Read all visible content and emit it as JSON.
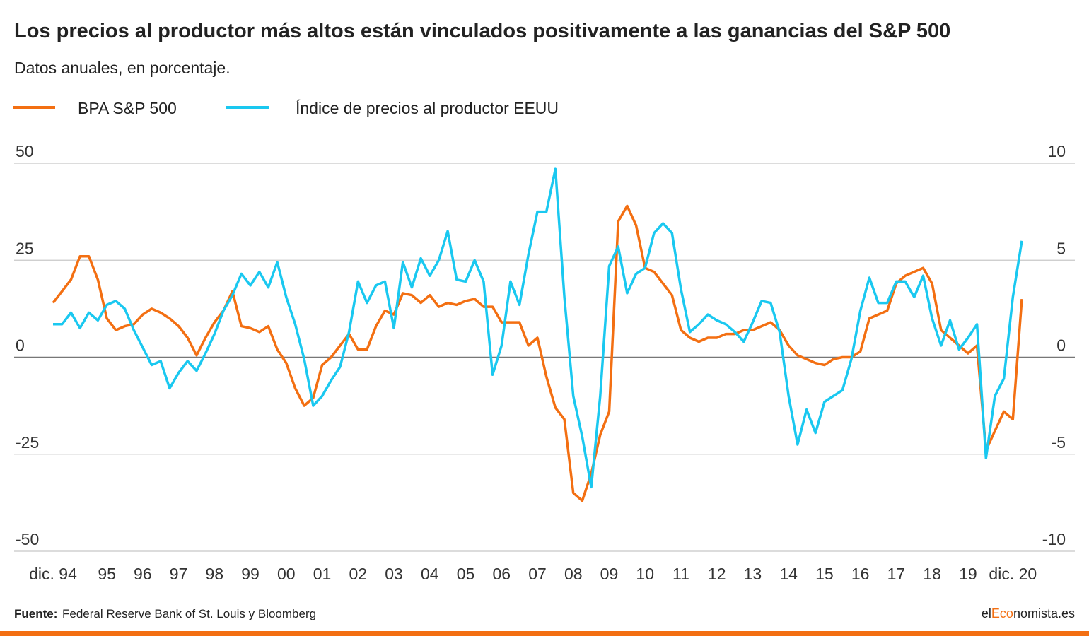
{
  "chart_data": {
    "type": "line",
    "title": "Los precios al productor más altos están vinculados positivamente a las ganancias del S&P 500",
    "subtitle": "Datos anuales, en porcentaje.",
    "source_label": "Fuente:",
    "source": "Federal Reserve Bank of St. Louis y Bloomberg",
    "logo": [
      "el",
      "Eco",
      "nomista.es"
    ],
    "categories": [
      "dic. 94",
      null,
      null,
      null,
      null,
      null,
      "95",
      null,
      null,
      null,
      "96",
      null,
      null,
      null,
      "97",
      null,
      null,
      null,
      "98",
      null,
      null,
      null,
      "99",
      null,
      null,
      null,
      "00",
      null,
      null,
      null,
      "01",
      null,
      null,
      null,
      "02",
      null,
      null,
      null,
      "03",
      null,
      null,
      null,
      "04",
      null,
      null,
      null,
      "05",
      null,
      null,
      null,
      "06",
      null,
      null,
      null,
      "07",
      null,
      null,
      null,
      "08",
      null,
      null,
      null,
      "09",
      null,
      null,
      null,
      "10",
      null,
      null,
      null,
      "11",
      null,
      null,
      null,
      "12",
      null,
      null,
      null,
      "13",
      null,
      null,
      null,
      "14",
      null,
      null,
      null,
      "15",
      null,
      null,
      null,
      "16",
      null,
      null,
      null,
      "17",
      null,
      null,
      null,
      "18",
      null,
      null,
      null,
      "19",
      null,
      null,
      null,
      null,
      "dic. 20",
      null
    ],
    "series": [
      {
        "name": "BPA S&P 500",
        "color": "#f36f12",
        "values": [
          14,
          17,
          20,
          26,
          26,
          20,
          10,
          7,
          8,
          8.5,
          11,
          12.5,
          11.5,
          10,
          8,
          5,
          0.5,
          5,
          9,
          12,
          17,
          8,
          7.5,
          6.5,
          8,
          2,
          -1.5,
          -8,
          -12.5,
          -10.5,
          -2,
          0,
          3,
          6,
          2,
          2,
          8,
          12,
          11,
          16.5,
          16,
          14,
          16,
          13,
          14,
          13.5,
          14.5,
          15,
          13,
          13,
          9,
          9,
          9,
          3,
          5,
          -5,
          -13,
          -16,
          -35,
          -37,
          -30,
          -20,
          -14,
          35,
          39,
          34,
          23,
          22,
          19,
          16,
          7,
          5,
          4,
          5,
          5,
          6,
          6,
          7,
          7,
          8,
          9,
          7,
          3,
          0.5,
          -0.5,
          -1.5,
          -2,
          -0.5,
          0,
          0,
          1.5,
          10,
          11,
          12,
          19,
          21,
          22,
          23,
          19,
          7,
          5,
          3,
          1,
          3,
          -24,
          -19,
          -14,
          -16,
          15
        ]
      },
      {
        "name": "Índice de precios al productor EEUU",
        "color": "#1ac8f0",
        "axis": "y2",
        "values": [
          1.7,
          1.7,
          2.3,
          1.5,
          2.3,
          1.9,
          2.7,
          2.9,
          2.5,
          1.4,
          0.5,
          -0.4,
          -0.2,
          -1.6,
          -0.8,
          -0.2,
          -0.7,
          0.2,
          1.2,
          2.4,
          3.2,
          4.3,
          3.7,
          4.4,
          3.6,
          4.9,
          3.1,
          1.7,
          -0.1,
          -2.5,
          -2,
          -1.2,
          -0.5,
          1.3,
          3.9,
          2.8,
          3.7,
          3.9,
          1.5,
          4.9,
          3.6,
          5.1,
          4.2,
          5,
          6.5,
          4,
          3.9,
          5,
          3.9,
          -0.9,
          0.6,
          3.9,
          2.7,
          5.3,
          7.5,
          7.5,
          9.7,
          3.1,
          -2,
          -4.1,
          -6.7,
          -2,
          4.7,
          5.7,
          3.3,
          4.3,
          4.6,
          6.4,
          6.9,
          6.4,
          3.5,
          1.3,
          1.7,
          2.2,
          1.9,
          1.7,
          1.3,
          0.8,
          1.8,
          2.9,
          2.8,
          1.3,
          -2,
          -4.5,
          -2.7,
          -3.9,
          -2.3,
          -2,
          -1.7,
          -0.1,
          2.4,
          4.1,
          2.8,
          2.8,
          3.9,
          3.9,
          3.1,
          4.2,
          2,
          0.6,
          1.9,
          0.4,
          1,
          1.7,
          -5.2,
          -2,
          -1.1,
          3.1,
          6
        ]
      }
    ],
    "ylim": [
      -50,
      50
    ],
    "yticks": [
      -50,
      -25,
      0,
      25,
      50
    ],
    "y2lim": [
      -10,
      10
    ],
    "y2ticks": [
      -10,
      -5,
      0,
      5,
      10
    ],
    "grid": true
  }
}
